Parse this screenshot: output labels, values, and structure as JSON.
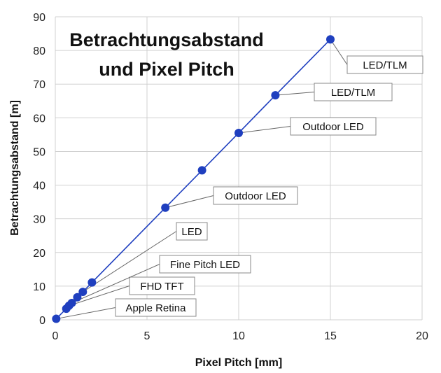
{
  "chart_data": {
    "type": "line",
    "title": "Betrachtungsabstand und Pixel Pitch",
    "title_lines": [
      "Betrachtungsabstand",
      "und Pixel Pitch"
    ],
    "xlabel": "Pixel Pitch [mm]",
    "ylabel": "Betrachtungsabstand [m]",
    "xlim": [
      0,
      20
    ],
    "ylim": [
      0,
      90
    ],
    "xticks": [
      0,
      5,
      10,
      15,
      20
    ],
    "yticks": [
      0,
      10,
      20,
      30,
      40,
      50,
      60,
      70,
      80,
      90
    ],
    "grid": true,
    "color": "#1f3fbf",
    "x": [
      0.05,
      0.6,
      0.75,
      0.9,
      1.2,
      1.5,
      2,
      6,
      8,
      10,
      12,
      15
    ],
    "y": [
      0.3,
      3.3,
      4.2,
      5,
      6.7,
      8.3,
      11.1,
      33.3,
      44.4,
      55.5,
      66.7,
      83.3
    ],
    "annotations": [
      {
        "text": "Apple Retina",
        "x": 0.05,
        "y": 0.3
      },
      {
        "text": "FHD TFT",
        "x": 0.75,
        "y": 4.2
      },
      {
        "text": "Fine Pitch LED",
        "x": 0.9,
        "y": 5
      },
      {
        "text": "LED",
        "x": 1.5,
        "y": 8.3
      },
      {
        "text": "Outdoor LED",
        "x": 6,
        "y": 33.3
      },
      {
        "text": "Outdoor LED",
        "x": 10,
        "y": 55.5
      },
      {
        "text": "LED/TLM",
        "x": 12,
        "y": 66.7
      },
      {
        "text": "LED/TLM",
        "x": 15,
        "y": 83.3
      }
    ]
  }
}
